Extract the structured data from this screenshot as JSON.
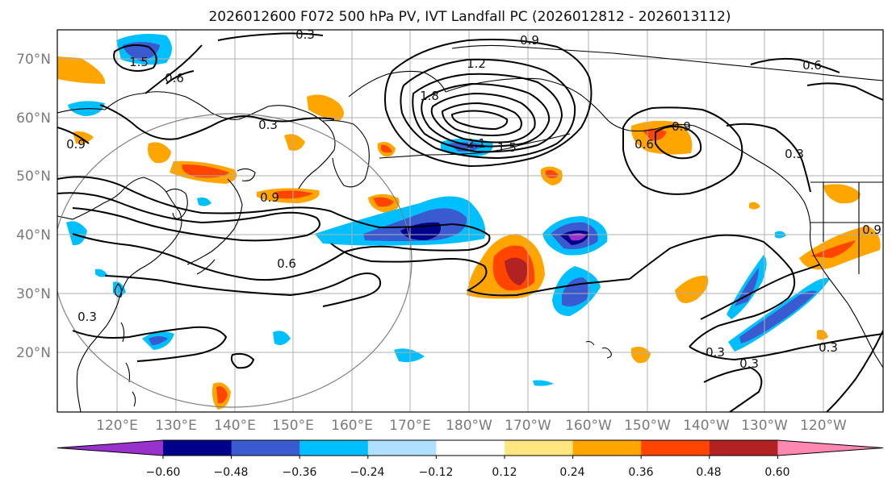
{
  "title": "2026012600 F072 500 hPa PV, IVT Landfall PC (2026012812 - 2026013112)",
  "map": {
    "lat_labels": [
      "70°N",
      "60°N",
      "50°N",
      "40°N",
      "30°N",
      "20°N"
    ],
    "lon_labels": [
      "120°E",
      "130°E",
      "140°E",
      "150°E",
      "160°E",
      "170°E",
      "180°W",
      "170°W",
      "160°W",
      "150°W",
      "140°W",
      "130°W",
      "120°W"
    ],
    "contour_labels": [
      "0.3",
      "0.9",
      "1.2",
      "1.5",
      "0.6",
      "1.8",
      "2.1",
      "1.5",
      "0.9",
      "0.6",
      "0.9",
      "0.3",
      "0.9",
      "0.3",
      "0.6",
      "0.3",
      "0.3",
      "0.3",
      "0.3",
      "0.6",
      "0.9"
    ]
  },
  "colorbar": {
    "ticks": [
      "−0.60",
      "−0.48",
      "−0.36",
      "−0.24",
      "−0.12",
      "0.12",
      "0.24",
      "0.36",
      "0.48",
      "0.60"
    ],
    "colors": [
      "#9932cc",
      "#00008b",
      "#3a5bd0",
      "#00bfff",
      "#b0e0ff",
      "#ffffff",
      "#ffe680",
      "#ffa500",
      "#ff4500",
      "#b22222",
      "#ff88b0"
    ]
  }
}
